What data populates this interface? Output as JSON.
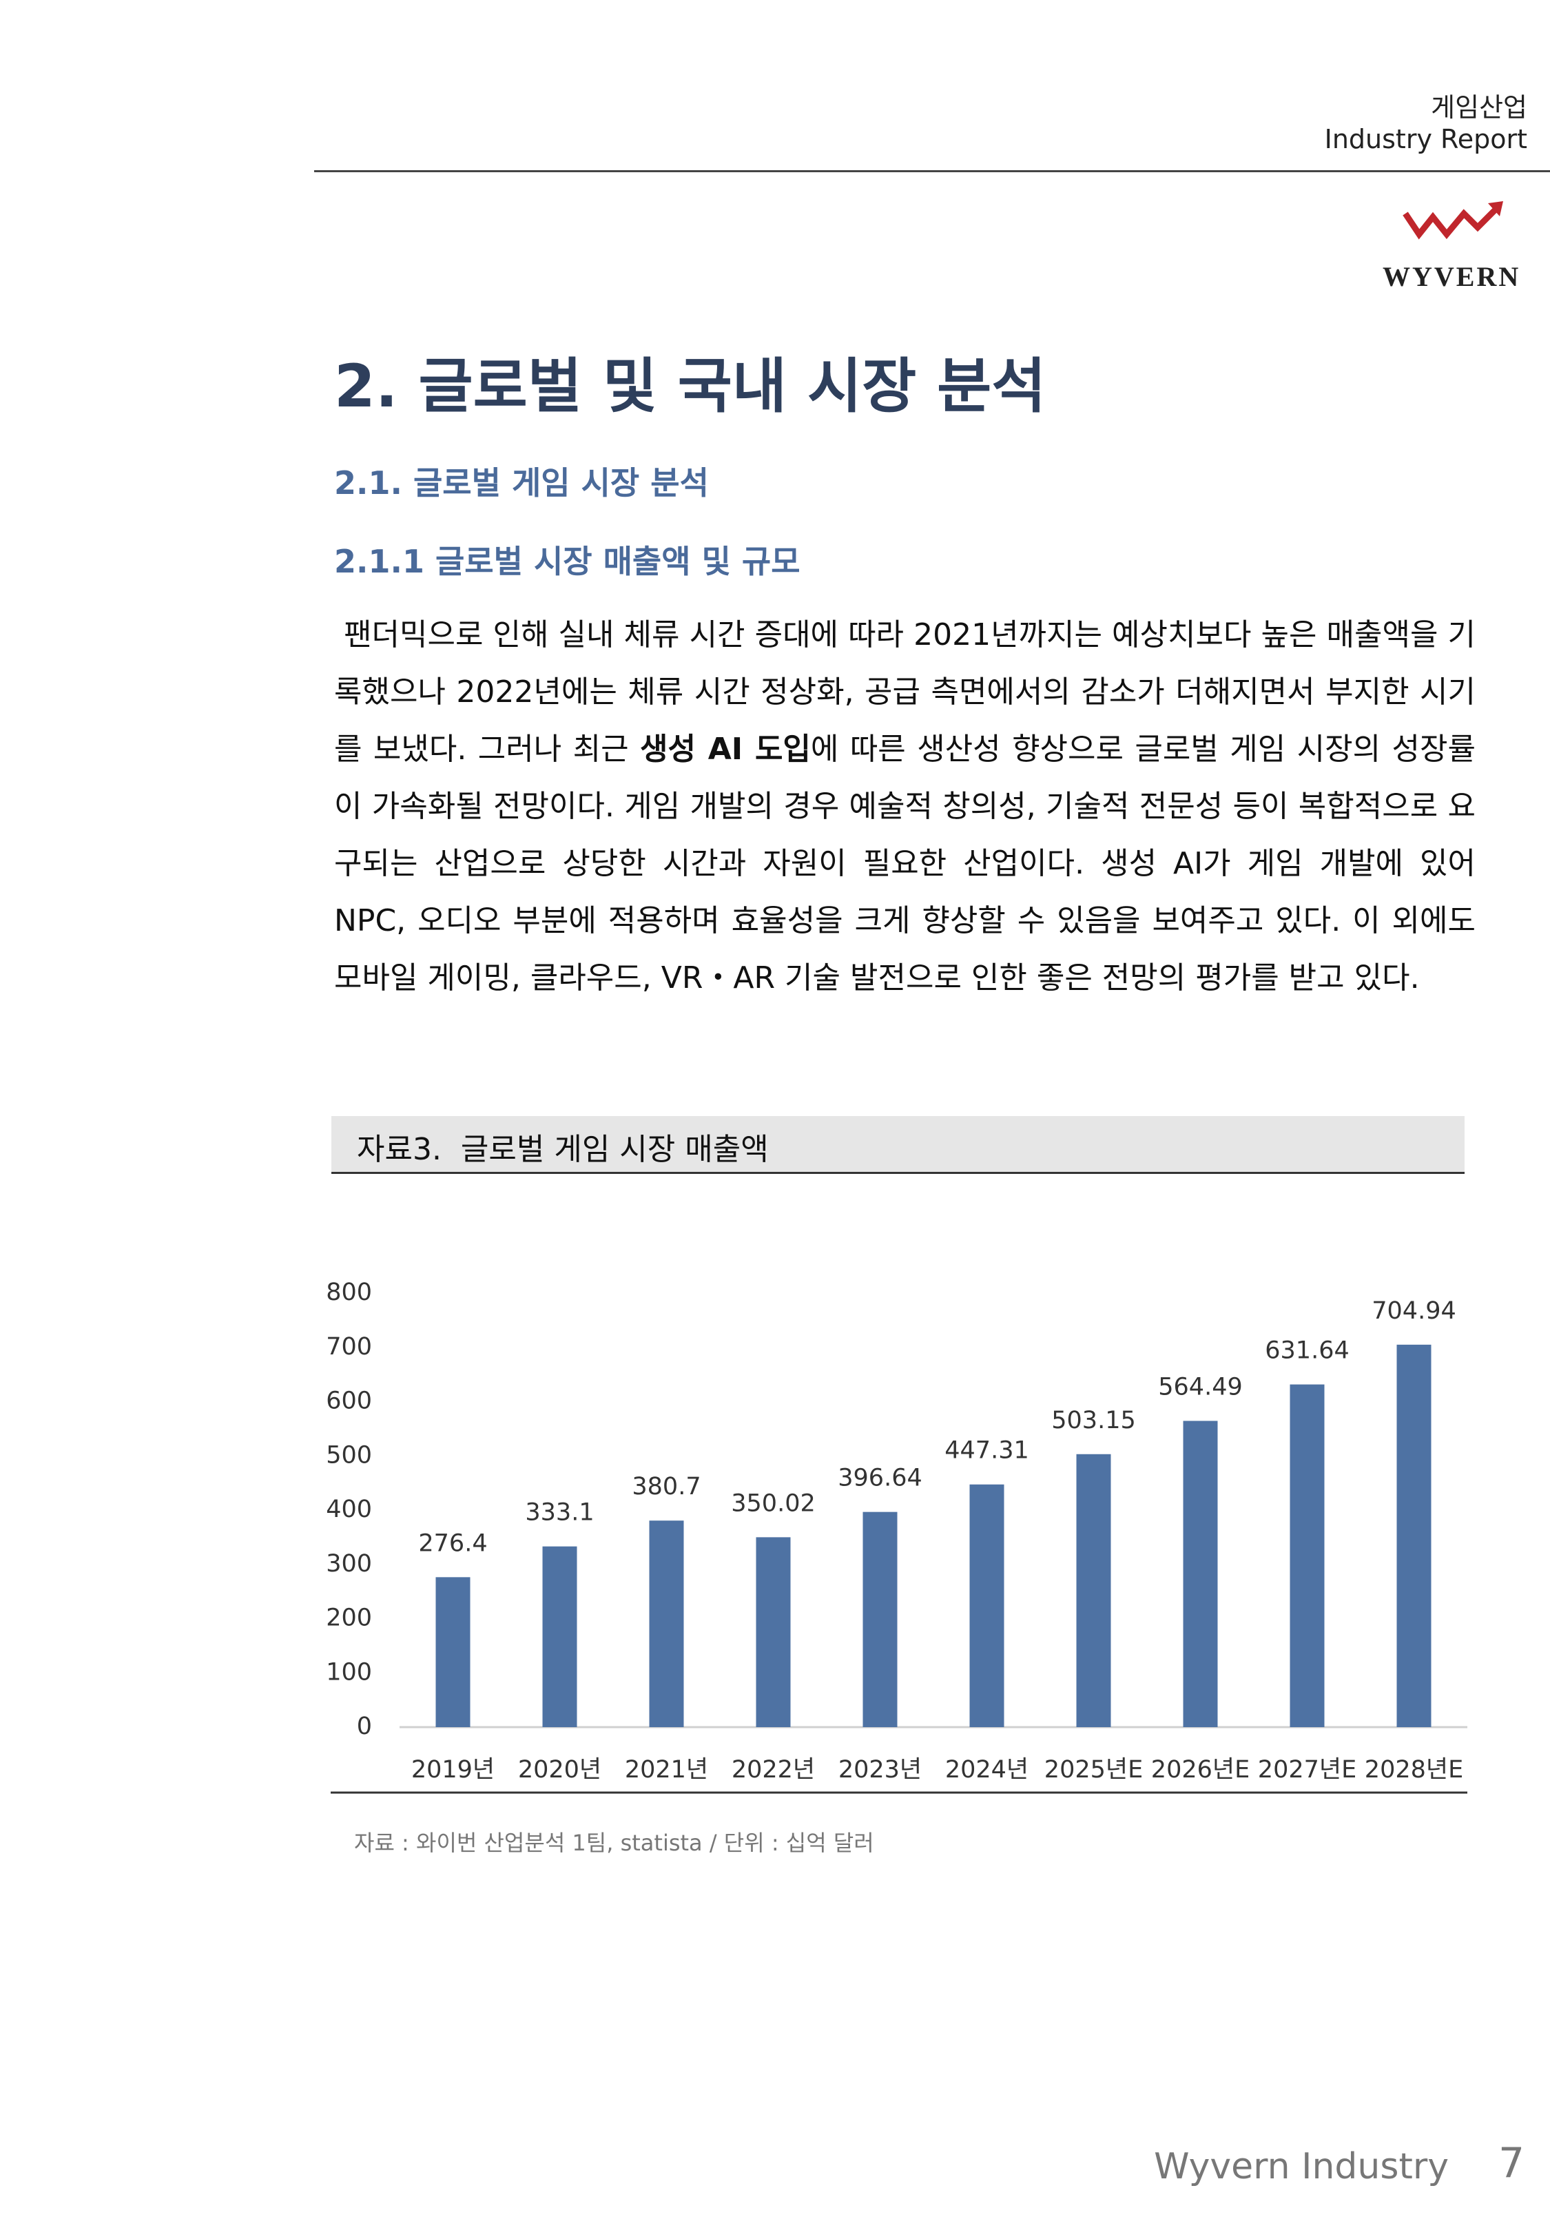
{
  "header": {
    "category": "게임산업",
    "report": "Industry Report",
    "logo": "WYVERN"
  },
  "heading": {
    "title": "2. 글로벌 및 국내 시장 분석",
    "section": "2.1. 글로벌 게임 시장 분석",
    "subsection": "2.1.1 글로벌 시장 매출액 및 규모"
  },
  "body": [
    " 팬더믹으로 인해 실내 체류 시간 증대에 따라 2021년까지는 예상치보다 높은 매출액을 기록했으나 2022년에는 체류 시간 정상화, 공급 측면에서의 감소가 더해지면서 부지한 시기를 보냈다. 그러나 최근 ",
    "생성 AI 도입",
    "에 따른 생산성 향상으로 글로벌 게임 시장의 성장률이 가속화될 전망이다. 게임 개발의 경우 예술적 창의성, 기술적 전문성 등이 복합적으로 요구되는 산업으로 상당한 시간과 자원이 필요한 산업이다. 생성 AI가 게임 개발에 있어 NPC, 오디오 부분에 적용하며 효율성을 크게 향상할 수 있음을 보여주고 있다. 이 외에도 모바일 게이밍, 클라우드, VR・AR 기술 발전으로 인한 좋은 전망의 평가를 받고 있다."
  ],
  "figure": {
    "caption": "자료3.  글로벌 게임 시장 매출액",
    "source": "자료 : 와이번 산업분석 1팀, statista / 단위 : 십억 달러"
  },
  "chart_data": {
    "type": "bar",
    "categories": [
      "2019년",
      "2020년",
      "2021년",
      "2022년",
      "2023년",
      "2024년",
      "2025년E",
      "2026년E",
      "2027년E",
      "2028년E"
    ],
    "values": [
      276.4,
      333.1,
      380.7,
      350.02,
      396.64,
      447.31,
      503.15,
      564.49,
      631.64,
      704.94
    ],
    "color": "#4e72a3",
    "ylim": [
      0,
      800
    ],
    "yticks": [
      0,
      100,
      200,
      300,
      400,
      500,
      600,
      700,
      800
    ],
    "grid": false
  },
  "footer": {
    "brand": "Wyvern Industry",
    "page": "7"
  }
}
